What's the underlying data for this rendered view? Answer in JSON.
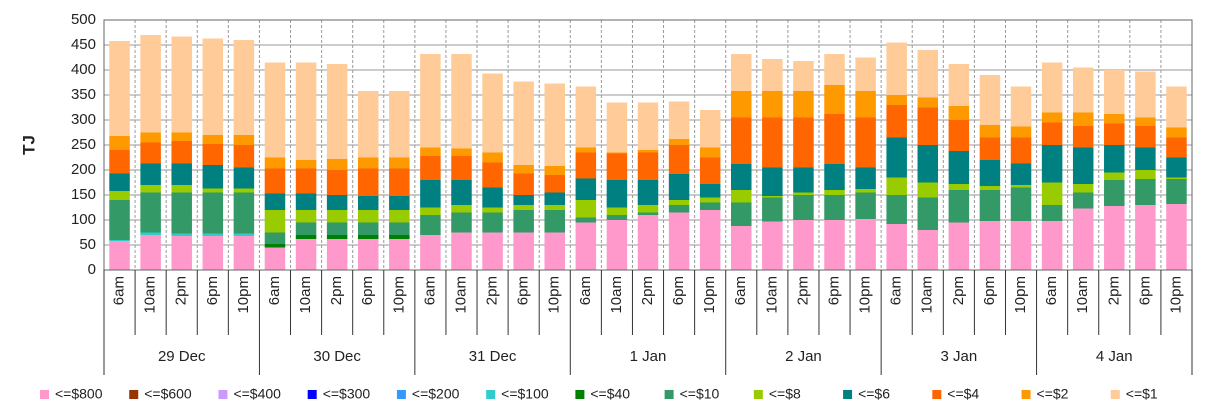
{
  "chart_data": {
    "type": "stacked-bar",
    "y_label": "TJ",
    "categories": [
      "6am",
      "10am",
      "2pm",
      "6pm",
      "10pm",
      "6am",
      "10am",
      "2pm",
      "6pm",
      "10pm",
      "6am",
      "10am",
      "2pm",
      "6pm",
      "10pm",
      "6am",
      "10am",
      "2pm",
      "6pm",
      "10pm",
      "6am",
      "10am",
      "2pm",
      "6pm",
      "10pm",
      "6am",
      "10am",
      "2pm",
      "6pm",
      "10pm",
      "6am",
      "10am",
      "2pm",
      "6pm",
      "10pm"
    ],
    "groups": [
      "29 Dec",
      "30 Dec",
      "31 Dec",
      "1 Jan",
      "2 Jan",
      "3 Jan",
      "4 Jan"
    ],
    "ylim": [
      0,
      500
    ],
    "yticks": [
      0,
      50,
      100,
      150,
      200,
      250,
      300,
      350,
      400,
      450,
      500
    ],
    "grid": true,
    "series": [
      {
        "name": "<=$800",
        "color": "#ff99cc",
        "values": [
          58,
          70,
          68,
          68,
          68,
          45,
          62,
          62,
          62,
          62,
          70,
          75,
          75,
          75,
          75,
          95,
          100,
          110,
          115,
          120,
          88,
          97,
          100,
          100,
          102,
          92,
          80,
          95,
          98,
          98,
          98,
          123,
          128,
          130,
          132
        ]
      },
      {
        "name": "<=$600",
        "color": "#993300",
        "values": [
          0,
          0,
          0,
          0,
          0,
          0,
          0,
          0,
          0,
          0,
          0,
          0,
          0,
          0,
          0,
          0,
          0,
          0,
          0,
          0,
          0,
          0,
          0,
          0,
          0,
          0,
          0,
          0,
          0,
          0,
          0,
          0,
          0,
          0,
          0
        ]
      },
      {
        "name": "<=$400",
        "color": "#cc99ff",
        "values": [
          0,
          0,
          0,
          0,
          0,
          0,
          0,
          0,
          0,
          0,
          0,
          0,
          0,
          0,
          0,
          0,
          0,
          0,
          0,
          0,
          0,
          0,
          0,
          0,
          0,
          0,
          0,
          0,
          0,
          0,
          0,
          0,
          0,
          0,
          0
        ]
      },
      {
        "name": "<=$300",
        "color": "#0000ff",
        "values": [
          0,
          0,
          0,
          0,
          0,
          0,
          0,
          0,
          0,
          0,
          0,
          0,
          0,
          0,
          0,
          0,
          0,
          0,
          0,
          0,
          0,
          0,
          0,
          0,
          0,
          0,
          0,
          0,
          0,
          0,
          0,
          0,
          0,
          0,
          0
        ]
      },
      {
        "name": "<=$200",
        "color": "#3399ff",
        "values": [
          0,
          0,
          0,
          0,
          0,
          0,
          0,
          0,
          0,
          0,
          0,
          0,
          0,
          0,
          0,
          0,
          0,
          0,
          0,
          0,
          0,
          0,
          0,
          0,
          0,
          0,
          0,
          0,
          0,
          0,
          0,
          0,
          0,
          0,
          0
        ]
      },
      {
        "name": "<=$100",
        "color": "#33cccc",
        "values": [
          2,
          5,
          5,
          5,
          5,
          0,
          0,
          0,
          0,
          0,
          0,
          0,
          0,
          0,
          0,
          0,
          0,
          0,
          0,
          0,
          0,
          0,
          0,
          0,
          0,
          0,
          0,
          0,
          0,
          0,
          0,
          0,
          0,
          0,
          0
        ]
      },
      {
        "name": "<=$40",
        "color": "#008000",
        "values": [
          0,
          0,
          0,
          0,
          0,
          7,
          8,
          8,
          8,
          8,
          0,
          0,
          0,
          0,
          0,
          0,
          0,
          0,
          0,
          0,
          0,
          0,
          0,
          0,
          0,
          0,
          0,
          0,
          0,
          0,
          0,
          0,
          0,
          0,
          0
        ]
      },
      {
        "name": "<=$10",
        "color": "#339966",
        "values": [
          80,
          80,
          82,
          82,
          82,
          23,
          25,
          25,
          25,
          25,
          40,
          40,
          40,
          45,
          45,
          10,
          10,
          5,
          15,
          15,
          47,
          48,
          50,
          50,
          53,
          58,
          65,
          65,
          62,
          67,
          32,
          32,
          52,
          52,
          50
        ]
      },
      {
        "name": "<=$8",
        "color": "#99cc00",
        "values": [
          18,
          15,
          15,
          8,
          8,
          45,
          25,
          25,
          25,
          25,
          15,
          15,
          10,
          10,
          10,
          35,
          15,
          15,
          10,
          10,
          25,
          3,
          5,
          10,
          7,
          35,
          30,
          12,
          8,
          5,
          45,
          17,
          15,
          18,
          3
        ]
      },
      {
        "name": "<=$6",
        "color": "#008080",
        "values": [
          35,
          43,
          43,
          47,
          42,
          33,
          33,
          30,
          28,
          28,
          55,
          50,
          40,
          20,
          25,
          43,
          55,
          50,
          52,
          27,
          52,
          57,
          50,
          52,
          43,
          80,
          75,
          66,
          52,
          43,
          75,
          73,
          55,
          45,
          40
        ]
      },
      {
        "name": "<=$4",
        "color": "#ff6600",
        "values": [
          47,
          42,
          45,
          42,
          45,
          50,
          50,
          50,
          55,
          55,
          48,
          48,
          50,
          43,
          35,
          52,
          53,
          55,
          58,
          53,
          93,
          100,
          100,
          100,
          100,
          65,
          75,
          62,
          45,
          52,
          45,
          43,
          43,
          43,
          40
        ]
      },
      {
        "name": "<=$2",
        "color": "#ff9900",
        "values": [
          28,
          20,
          17,
          18,
          20,
          22,
          17,
          22,
          22,
          22,
          17,
          15,
          20,
          17,
          18,
          10,
          2,
          5,
          12,
          20,
          53,
          53,
          53,
          58,
          53,
          20,
          20,
          28,
          25,
          22,
          20,
          27,
          19,
          17,
          20
        ]
      },
      {
        "name": "<=$1",
        "color": "#ffcc99",
        "values": [
          190,
          195,
          192,
          193,
          190,
          190,
          195,
          190,
          133,
          133,
          187,
          189,
          158,
          167,
          165,
          122,
          100,
          95,
          75,
          75,
          74,
          64,
          60,
          62,
          67,
          105,
          95,
          84,
          100,
          80,
          100,
          90,
          88,
          92,
          82
        ]
      }
    ]
  }
}
